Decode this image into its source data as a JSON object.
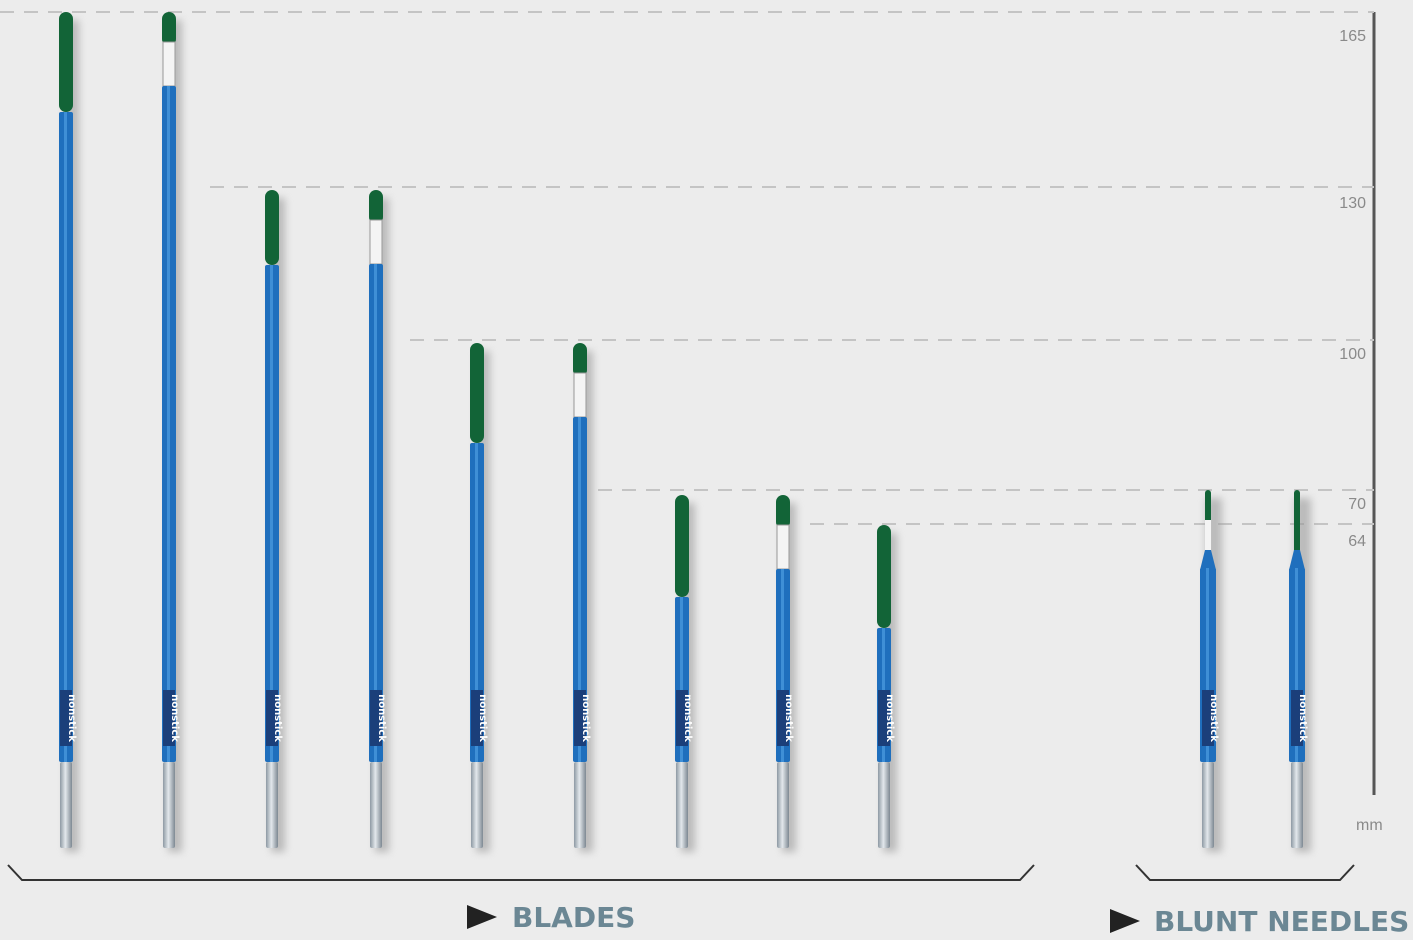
{
  "scale": {
    "ticks": [
      "165",
      "130",
      "100",
      "70",
      "64"
    ],
    "unit": "mm"
  },
  "groups": [
    {
      "label": "BLADES"
    },
    {
      "label": "BLUNT NEEDLES"
    }
  ],
  "electrodes": [
    {
      "label": "nonstick"
    },
    {
      "label": "nonstick"
    },
    {
      "label": "nonstick"
    },
    {
      "label": "nonstick"
    },
    {
      "label": "nonstick"
    },
    {
      "label": "nonstick"
    },
    {
      "label": "nonstick"
    },
    {
      "label": "nonstick"
    },
    {
      "label": "nonstick"
    },
    {
      "label": "nonstick"
    },
    {
      "label": "nonstick"
    }
  ]
}
